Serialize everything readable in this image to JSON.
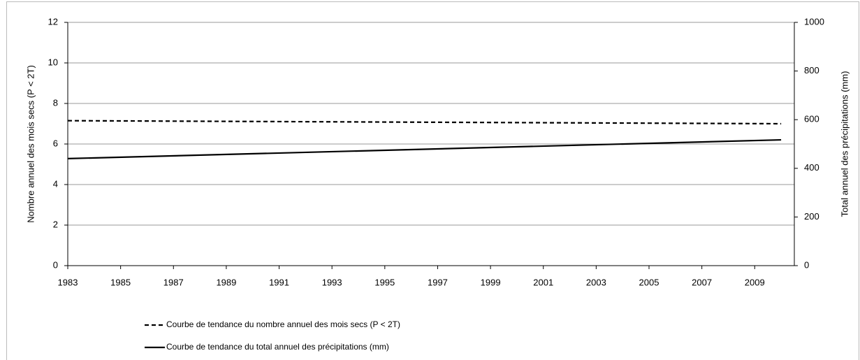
{
  "chart_data": {
    "type": "line",
    "x_axis": {
      "xlim": [
        1983,
        2010.5
      ],
      "xticks": [
        1983,
        1985,
        1987,
        1989,
        1991,
        1993,
        1995,
        1997,
        1999,
        2001,
        2003,
        2005,
        2007,
        2009
      ]
    },
    "ylabel": "Nombre annuel des mois secs (P < 2T)",
    "y2label": "Total annuel des précipitations (mm)",
    "ylim": [
      0,
      12
    ],
    "yticks": [
      0,
      2,
      4,
      6,
      8,
      10,
      12
    ],
    "y2lim": [
      0,
      1000
    ],
    "y2ticks": [
      0,
      200,
      400,
      600,
      800,
      1000
    ],
    "grid": true,
    "legend": "bottom",
    "series": [
      {
        "name": "Courbe de tendance du nombre annuel des mois secs (P < 2T)",
        "color": "#000000",
        "style": "dashed",
        "axis": "y",
        "x": [
          1983,
          2010
        ],
        "values": [
          7.15,
          7.0
        ]
      },
      {
        "name": "Courbe de tendance du total annuel des précipitations (mm)",
        "color": "#000000",
        "style": "solid",
        "axis": "y2",
        "x": [
          1983,
          2010
        ],
        "values": [
          440,
          517
        ]
      }
    ]
  }
}
